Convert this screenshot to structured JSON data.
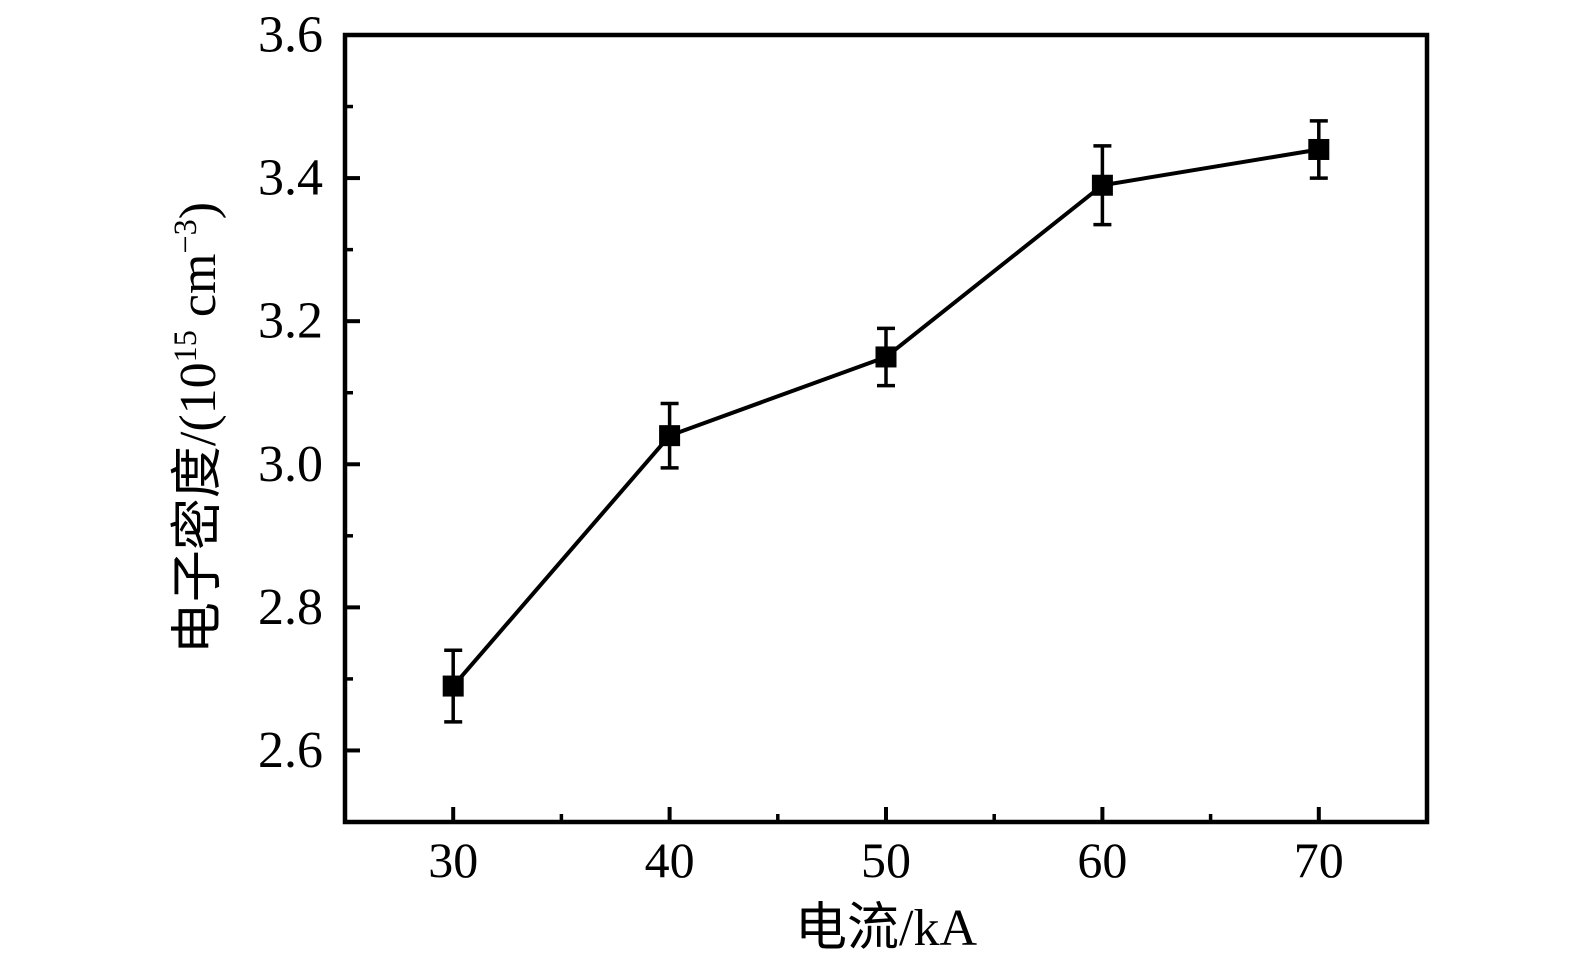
{
  "figure": {
    "background": "#ffffff",
    "foreground": "#000000"
  },
  "chart_data": {
    "type": "line",
    "title": "",
    "xlabel": "电流/kA",
    "ylabel": "电子密度/(10^15 cm^-3)",
    "ylabel_parts": [
      {
        "text": "电子密度/(10",
        "sup": false
      },
      {
        "text": "15",
        "sup": true
      },
      {
        "text": " cm",
        "sup": false
      },
      {
        "text": "−3",
        "sup": true
      },
      {
        "text": ")",
        "sup": false
      }
    ],
    "series": [
      {
        "name": "electron-density",
        "x": [
          30,
          40,
          50,
          60,
          70
        ],
        "y": [
          2.69,
          3.04,
          3.15,
          3.39,
          3.44
        ],
        "y_err": [
          0.05,
          0.045,
          0.04,
          0.055,
          0.04
        ],
        "marker": "square",
        "color": "#000000"
      }
    ],
    "xlim": [
      25,
      75
    ],
    "ylim": [
      2.5,
      3.6
    ],
    "x_major_ticks": [
      30,
      40,
      50,
      60,
      70
    ],
    "x_tick_labels": [
      "30",
      "40",
      "50",
      "60",
      "70"
    ],
    "x_minor_ticks": [
      35,
      45,
      55,
      65
    ],
    "y_major_ticks": [
      2.6,
      2.8,
      3.0,
      3.2,
      3.4,
      3.6
    ],
    "y_tick_labels": [
      "2.6",
      "2.8",
      "3.0",
      "3.2",
      "3.4",
      "3.6"
    ],
    "y_minor_ticks": [
      2.7,
      2.9,
      3.1,
      3.3,
      3.5
    ],
    "grid": false,
    "legend": null,
    "tick_direction": "in",
    "axis_color": "#000000",
    "background": "#ffffff"
  }
}
